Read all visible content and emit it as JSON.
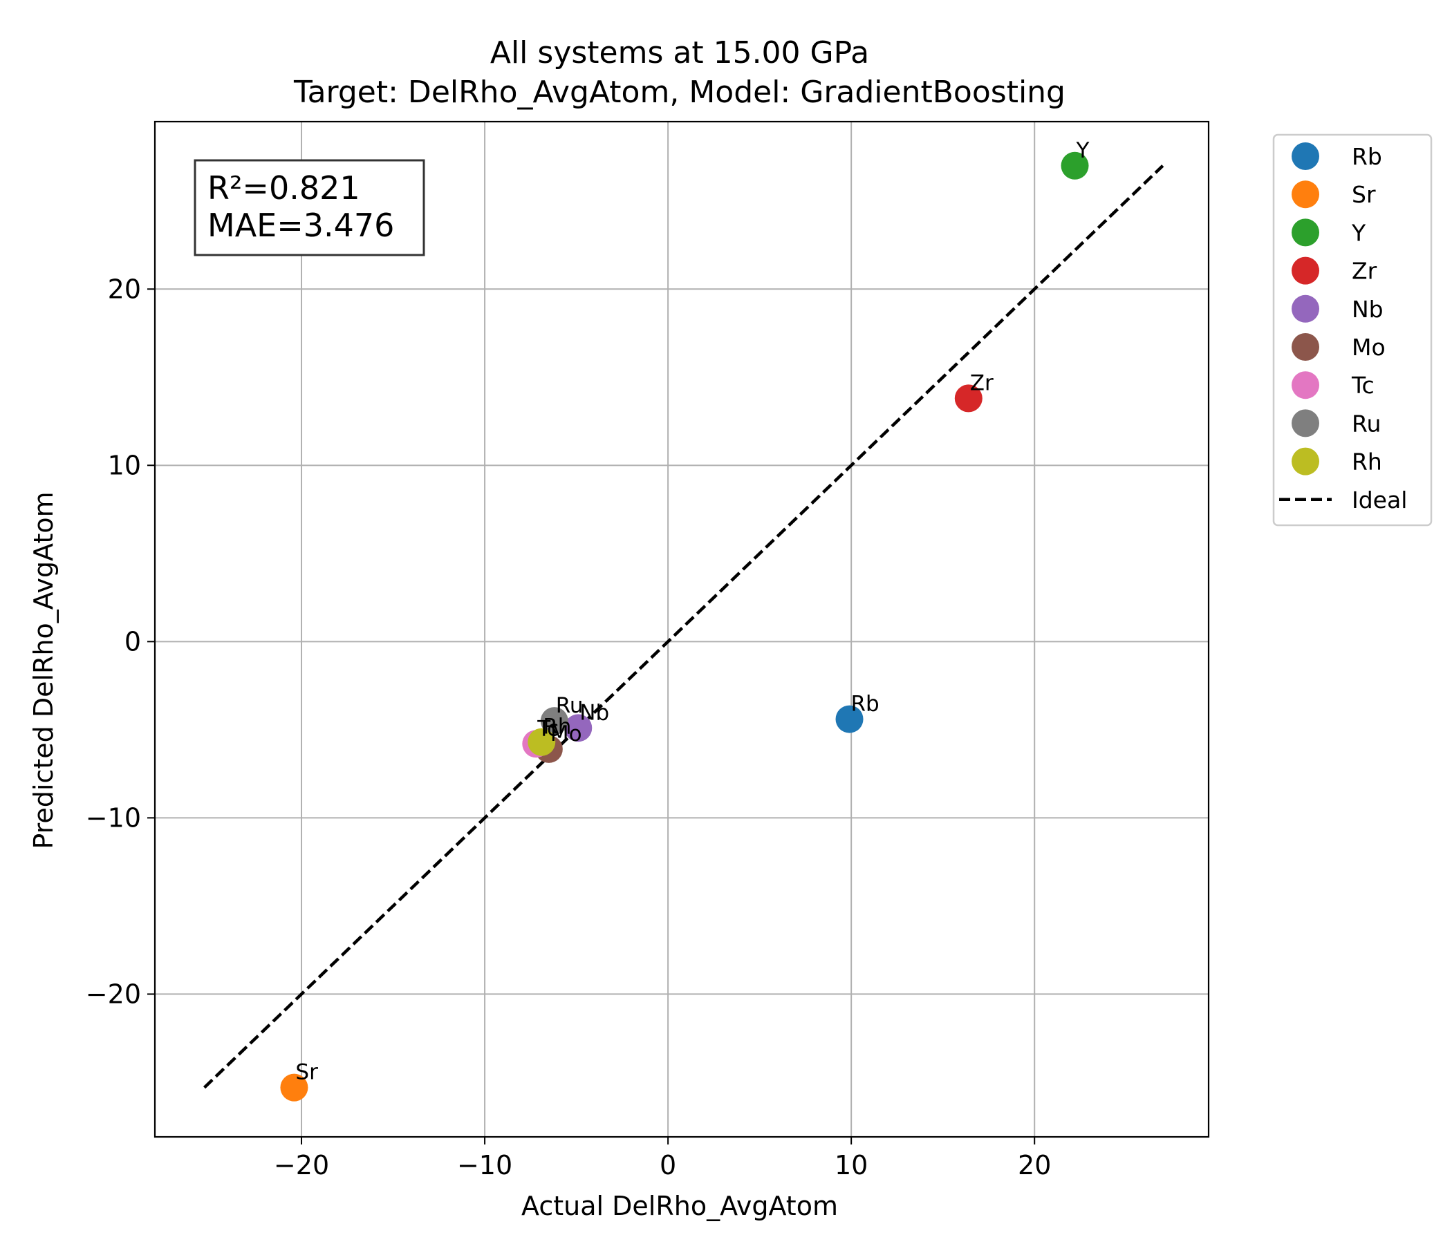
{
  "chart_data": {
    "type": "scatter",
    "title_line1": "All systems at 15.00 GPa",
    "title_line2": "Target: DelRho_AvgAtom, Model: GradientBoosting",
    "xlabel": "Actual DelRho_AvgAtom",
    "ylabel": "Predicted DelRho_AvgAtom",
    "xlim": [
      -28,
      29.5
    ],
    "ylim": [
      -28.1,
      29.5
    ],
    "xticks": [
      -20,
      -10,
      0,
      10,
      20
    ],
    "yticks": [
      -20,
      -10,
      0,
      10,
      20
    ],
    "xtick_labels": [
      "−20",
      "−10",
      "0",
      "10",
      "20"
    ],
    "ytick_labels": [
      "−20",
      "−10",
      "0",
      "10",
      "20"
    ],
    "grid": true,
    "legend_position": "outside-upper-right",
    "series": [
      {
        "name": "Rb",
        "color": "#1f77b4",
        "x": 9.9,
        "y": -4.4
      },
      {
        "name": "Sr",
        "color": "#ff7f0e",
        "x": -20.4,
        "y": -25.3
      },
      {
        "name": "Y",
        "color": "#2ca02c",
        "x": 22.2,
        "y": 27.0
      },
      {
        "name": "Zr",
        "color": "#d62728",
        "x": 16.4,
        "y": 13.8
      },
      {
        "name": "Nb",
        "color": "#9467bd",
        "x": -4.9,
        "y": -4.9
      },
      {
        "name": "Mo",
        "color": "#8c564b",
        "x": -6.5,
        "y": -6.1
      },
      {
        "name": "Tc",
        "color": "#e377c2",
        "x": -7.2,
        "y": -5.8
      },
      {
        "name": "Ru",
        "color": "#7f7f7f",
        "x": -6.2,
        "y": -4.5
      },
      {
        "name": "Rh",
        "color": "#bcbd22",
        "x": -6.9,
        "y": -5.7
      }
    ],
    "ideal_line": {
      "name": "Ideal",
      "x": [
        -25.3,
        27.0
      ],
      "y": [
        -25.3,
        27.0
      ]
    },
    "stats": {
      "r2": "R²=0.821",
      "mae": "MAE=3.476"
    }
  }
}
